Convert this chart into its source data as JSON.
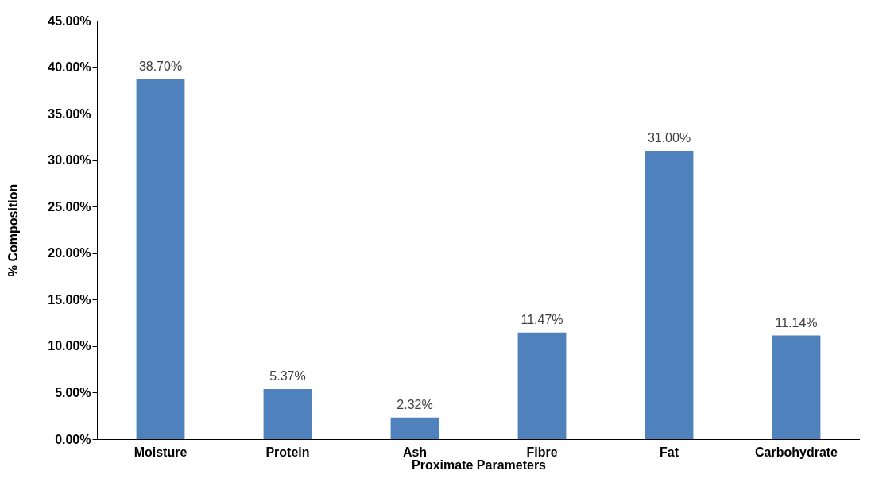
{
  "chart_data": {
    "type": "bar",
    "xlabel": "Proximate Parameters",
    "ylabel": "% Composition",
    "categories": [
      "Moisture",
      "Protein",
      "Ash",
      "Fibre",
      "Fat",
      "Carbohydrate"
    ],
    "values": [
      38.7,
      5.37,
      2.32,
      11.47,
      31.0,
      11.14
    ],
    "value_labels": [
      "38.70%",
      "5.37%",
      "2.32%",
      "11.47%",
      "31.00%",
      "11.14%"
    ],
    "color": "#4f81bd",
    "ylim": [
      0,
      45
    ],
    "yticks": [
      {
        "value": 0,
        "label": "0.00%"
      },
      {
        "value": 5,
        "label": "5.00%"
      },
      {
        "value": 10,
        "label": "10.00%"
      },
      {
        "value": 15,
        "label": "15.00%"
      },
      {
        "value": 20,
        "label": "20.00%"
      },
      {
        "value": 25,
        "label": "25.00%"
      },
      {
        "value": 30,
        "label": "30.00%"
      },
      {
        "value": 35,
        "label": "35.00%"
      },
      {
        "value": 40,
        "label": "40.00%"
      },
      {
        "value": 45,
        "label": "45.00%"
      }
    ],
    "grid": false
  }
}
